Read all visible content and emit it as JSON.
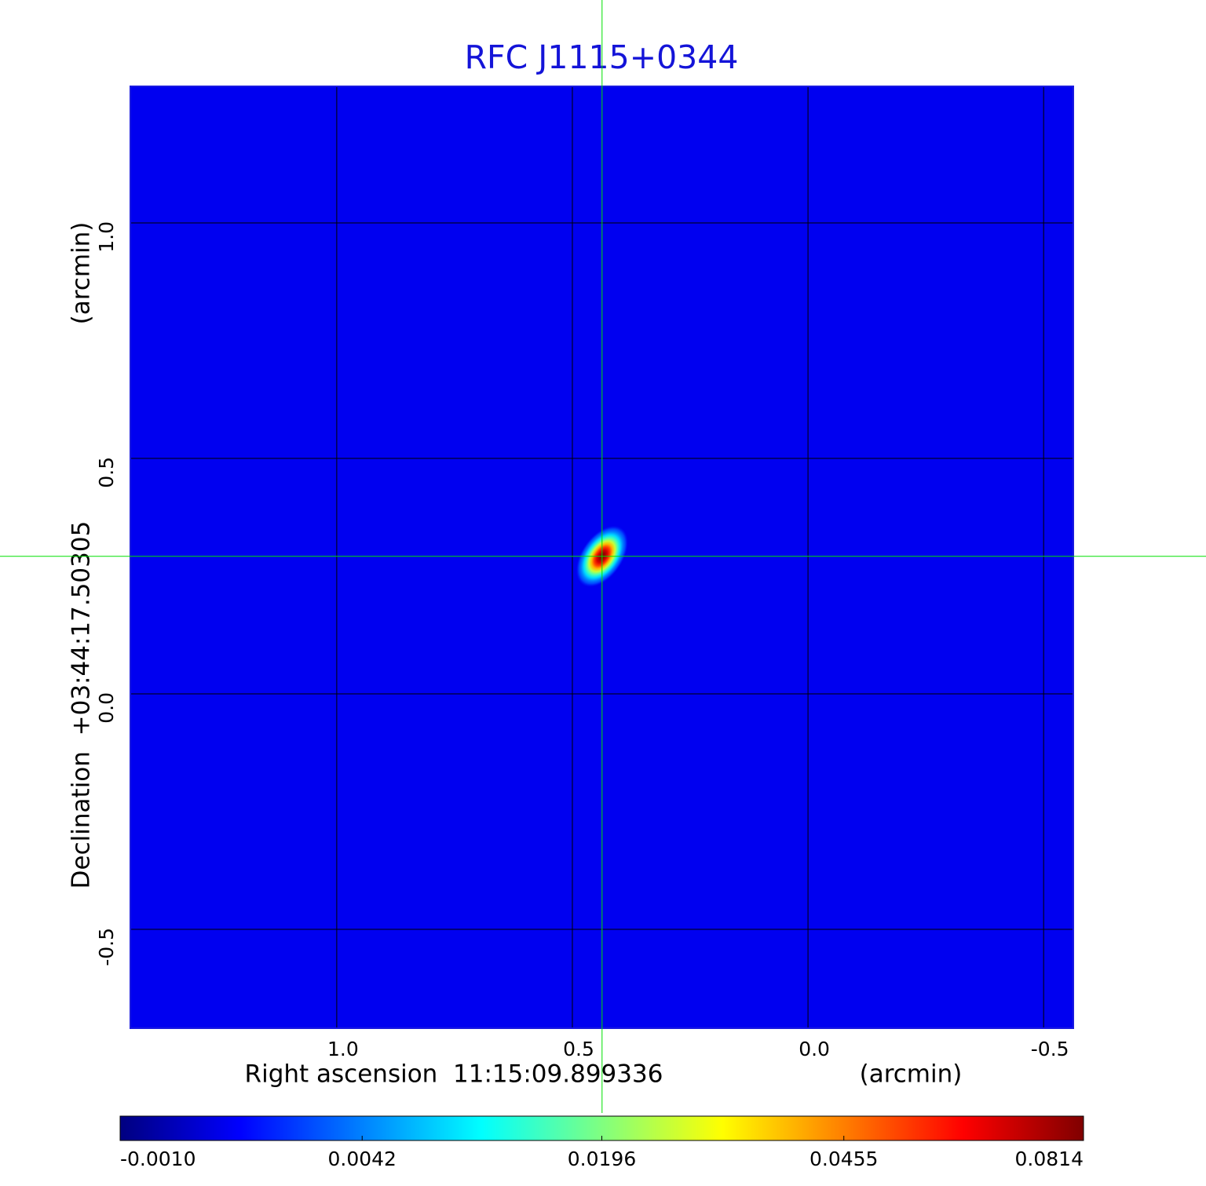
{
  "chart_data": {
    "type": "image",
    "title": "RFC J1115+0344",
    "x_label": "Right ascension  11:15:09.899336",
    "x_unit": "(arcmin)",
    "y_label": "Declination  +03:44:17.50305",
    "y_unit": "(arcmin)",
    "xlim": [
      1.438,
      -0.563
    ],
    "ylim": [
      -0.71,
      1.29
    ],
    "xticks": [
      {
        "value": 1,
        "label": "1.0"
      },
      0.5,
      {
        "value": 0,
        "label": "0.0"
      },
      -0.5
    ],
    "yticks": [
      -0.5,
      {
        "value": 0,
        "label": "0.0"
      },
      0.5,
      {
        "value": 1,
        "label": "1.0"
      }
    ],
    "grid": true,
    "colormap": "jet",
    "colorbar_scale": "sqrt",
    "colorbar_lim": [
      -0.001,
      0.0814
    ],
    "colorbar_ticks": [
      {
        "value": -0.001,
        "label": "-0.0010"
      },
      {
        "value": 0.0042,
        "label": "0.0042"
      },
      0.0196,
      0.0455,
      0.0814
    ],
    "source": {
      "x": 0.437,
      "y": 0.292,
      "peak": 0.0814
    },
    "crosshair_color": "#00e000"
  }
}
